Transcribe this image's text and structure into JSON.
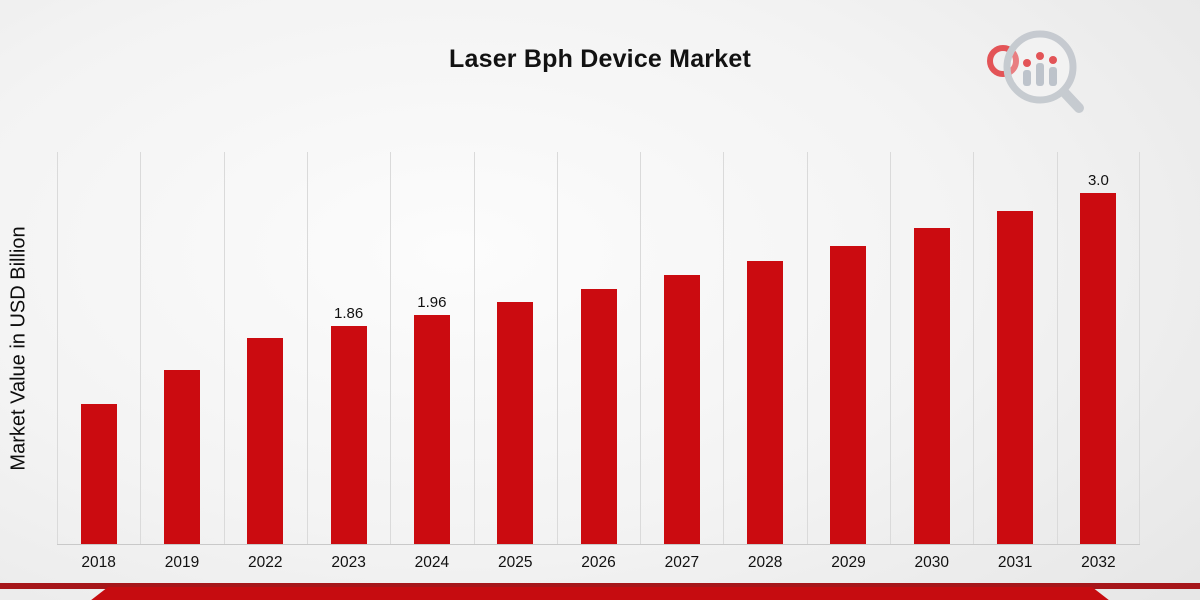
{
  "chart_data": {
    "type": "bar",
    "title": "Laser Bph Device Market",
    "xlabel": "",
    "ylabel": "Market Value in USD Billion",
    "categories": [
      "2018",
      "2019",
      "2022",
      "2023",
      "2024",
      "2025",
      "2026",
      "2027",
      "2028",
      "2029",
      "2030",
      "2031",
      "2032"
    ],
    "values": [
      1.2,
      1.49,
      1.76,
      1.86,
      1.96,
      2.07,
      2.18,
      2.3,
      2.42,
      2.55,
      2.7,
      2.85,
      3.0
    ],
    "data_labels": [
      "",
      "",
      "",
      "1.86",
      "1.96",
      "",
      "",
      "",
      "",
      "",
      "",
      "",
      "3.0"
    ],
    "ylim": [
      0,
      3.35
    ],
    "grid": "vertical",
    "legend": "none",
    "bar_color": "#CB0B10"
  },
  "footer": {
    "stripe_color": "#A6161A",
    "ribbon_color": "#C60C10"
  },
  "logo": {
    "icon": "magnifier-bar-chart-logo",
    "ring_color": "#E2474B",
    "glass_color": "#C3C8CE",
    "bar_color": "#B9C0C8"
  }
}
